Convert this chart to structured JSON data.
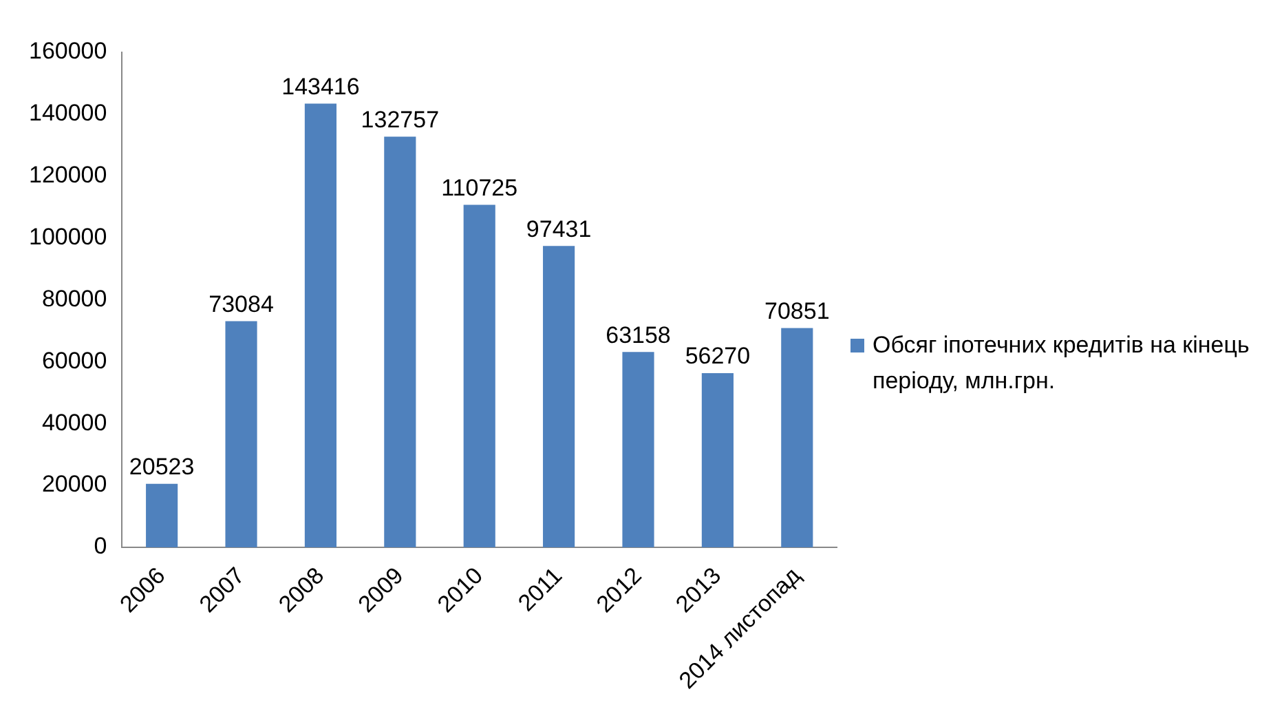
{
  "chart_data": {
    "type": "bar",
    "categories": [
      "2006",
      "2007",
      "2008",
      "2009",
      "2010",
      "2011",
      "2012",
      "2013",
      "2014 листопад"
    ],
    "series": [
      {
        "name": "Обсяг іпотечних кредитів на кінець періоду, млн.грн.",
        "color": "#4f81bd",
        "values": [
          20523,
          73084,
          143416,
          132757,
          110725,
          97431,
          63158,
          56270,
          70851
        ]
      }
    ],
    "ylim": [
      0,
      160000
    ],
    "yticks": [
      0,
      20000,
      40000,
      60000,
      80000,
      100000,
      120000,
      140000,
      160000
    ],
    "grid": false,
    "legend": "right",
    "data_labels": true
  }
}
